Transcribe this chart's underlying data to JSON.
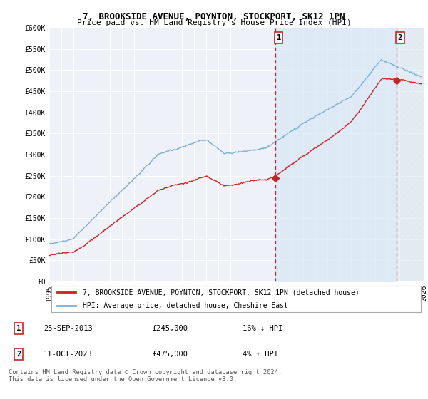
{
  "title": "7, BROOKSIDE AVENUE, POYNTON, STOCKPORT, SK12 1PN",
  "subtitle": "Price paid vs. HM Land Registry's House Price Index (HPI)",
  "ylabel_ticks": [
    "£0",
    "£50K",
    "£100K",
    "£150K",
    "£200K",
    "£250K",
    "£300K",
    "£350K",
    "£400K",
    "£450K",
    "£500K",
    "£550K",
    "£600K"
  ],
  "ytick_values": [
    0,
    50000,
    100000,
    150000,
    200000,
    250000,
    300000,
    350000,
    400000,
    450000,
    500000,
    550000,
    600000
  ],
  "xlim": [
    1995,
    2026
  ],
  "ylim": [
    0,
    600000
  ],
  "hpi_color": "#7ab0d4",
  "price_color": "#cc2222",
  "vline_color": "#cc2222",
  "shade_color": "#d6e8f5",
  "bg_color": "#eef2f8",
  "grid_color": "#ffffff",
  "transaction1_x": 2013.73,
  "transaction1_y": 245000,
  "transaction2_x": 2023.78,
  "transaction2_y": 475000,
  "legend_line1": "7, BROOKSIDE AVENUE, POYNTON, STOCKPORT, SK12 1PN (detached house)",
  "legend_line2": "HPI: Average price, detached house, Cheshire East",
  "annotation1_label": "1",
  "annotation1_date": "25-SEP-2013",
  "annotation1_price": "£245,000",
  "annotation1_hpi": "16% ↓ HPI",
  "annotation2_label": "2",
  "annotation2_date": "11-OCT-2023",
  "annotation2_price": "£475,000",
  "annotation2_hpi": "4% ↑ HPI",
  "footer": "Contains HM Land Registry data © Crown copyright and database right 2024.\nThis data is licensed under the Open Government Licence v3.0.",
  "title_fontsize": 9,
  "subtitle_fontsize": 8,
  "tick_fontsize": 7,
  "legend_fontsize": 7
}
